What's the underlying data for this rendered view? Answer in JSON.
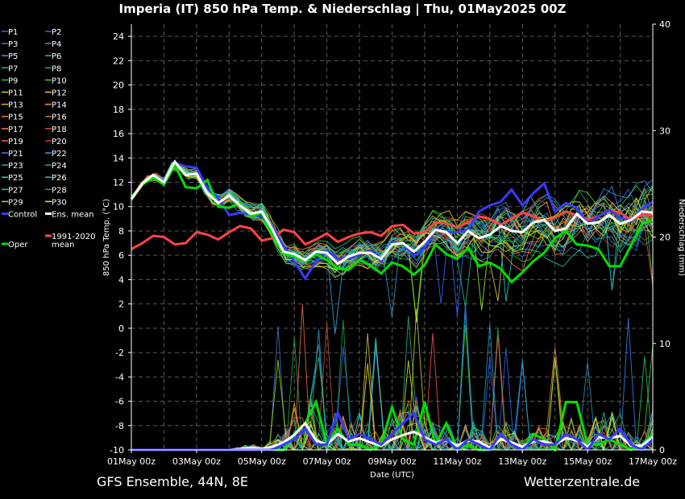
{
  "header": {
    "title": "Imperia  (IT)  850 hPa Temp. & Niederschlag | Thu, 01May2025 00Z"
  },
  "footer": {
    "model_info": "GFS Ensemble, 44N, 8E",
    "site": "Wetterzentrale.de"
  },
  "colors": {
    "background": "#000000",
    "grid": "#5a5a5a",
    "axis": "#ffffff",
    "control": "#3a3aff",
    "ens_mean": "#ffffff",
    "oper": "#00e000",
    "climate": "#ff4444"
  },
  "chart_data": {
    "type": "line",
    "x_start": "01May2025 00z",
    "x_step_hours": 6,
    "ylabel_left": "850 hPa Temp. (°C)",
    "ylabel_right": "Niederschlag (mm)",
    "xlabel": "Date (UTC)",
    "ylim_left": [
      -10,
      25
    ],
    "ylim_right": [
      0,
      40
    ],
    "left_ticks": [
      "24",
      "22",
      "20",
      "18",
      "16",
      "14",
      "12",
      "10",
      "8",
      "6",
      "4",
      "2",
      "0",
      "-2",
      "-4",
      "-6",
      "-8",
      "-10"
    ],
    "right_ticks": [
      "40",
      "30",
      "20",
      "10",
      "0"
    ],
    "x_ticks": [
      "01May 00z",
      "03May 00z",
      "05May 00z",
      "07May 00z",
      "09May 00z",
      "11May 00z",
      "13May 00z",
      "15May 00z",
      "17May 00z"
    ],
    "grid": true,
    "legend_position": "left",
    "legend": [
      {
        "label": "P1",
        "color": "#3366ff"
      },
      {
        "label": "P2",
        "color": "#3366ff"
      },
      {
        "label": "P3",
        "color": "#4477dd"
      },
      {
        "label": "P4",
        "color": "#3399cc"
      },
      {
        "label": "P5",
        "color": "#22aacc"
      },
      {
        "label": "P6",
        "color": "#22cc66"
      },
      {
        "label": "P7",
        "color": "#22bb88"
      },
      {
        "label": "P8",
        "color": "#22aa55"
      },
      {
        "label": "P9",
        "color": "#33cc33"
      },
      {
        "label": "P10",
        "color": "#44dd22"
      },
      {
        "label": "P11",
        "color": "#ccdd22"
      },
      {
        "label": "P12",
        "color": "#ddcc44"
      },
      {
        "label": "P13",
        "color": "#ddbb22"
      },
      {
        "label": "P14",
        "color": "#ee9922"
      },
      {
        "label": "P15",
        "color": "#ee8833"
      },
      {
        "label": "P16",
        "color": "#cc7733"
      },
      {
        "label": "P17",
        "color": "#ee7744"
      },
      {
        "label": "P18",
        "color": "#cc5533"
      },
      {
        "label": "P19",
        "color": "#ff5555"
      },
      {
        "label": "P20",
        "color": "#cc3333"
      },
      {
        "label": "P21",
        "color": "#3388ff"
      },
      {
        "label": "P22",
        "color": "#22aaee"
      },
      {
        "label": "P23",
        "color": "#22aacc"
      },
      {
        "label": "P24",
        "color": "#2299aa"
      },
      {
        "label": "P25",
        "color": "#22ddaa"
      },
      {
        "label": "P26",
        "color": "#22ccbb"
      },
      {
        "label": "P27",
        "color": "#22cc77"
      },
      {
        "label": "P28",
        "color": "#22aa33"
      },
      {
        "label": "P29",
        "color": "#99ee22"
      },
      {
        "label": "P30",
        "color": "#eeee22"
      },
      {
        "label": "Control",
        "color": "#3a3aff"
      },
      {
        "label": "Ens. mean",
        "color": "#ffffff"
      },
      {
        "label": "Oper",
        "color": "#00e000"
      },
      {
        "label": "1991-2020\nmean",
        "color": "#ff4444"
      }
    ],
    "series_temp": [
      {
        "name": "Control",
        "color": "#3a3aff",
        "width": 3,
        "values": [
          10.7,
          11.8,
          12.6,
          12.1,
          13.6,
          13.3,
          13.2,
          11.5,
          10.7,
          9.3,
          9.5,
          9.3,
          9.2,
          8.3,
          6.8,
          5.5,
          4.1,
          5.5,
          6.4,
          5.7,
          5.7,
          6.1,
          6.4,
          5.5,
          7.1,
          7.0,
          5.9,
          6.6,
          8.2,
          7.9,
          7.9,
          8.1,
          9.6,
          10.1,
          10.4,
          11.4,
          10.1,
          11.1,
          11.9,
          9.6,
          10.3,
          9.9,
          8.6,
          9.2,
          9.7,
          9.1,
          8.8,
          9.8,
          10.4
        ]
      },
      {
        "name": "Ens. mean",
        "color": "#ffffff",
        "width": 3,
        "values": [
          10.6,
          11.9,
          12.6,
          12.0,
          13.7,
          12.6,
          12.7,
          11.1,
          10.3,
          10.9,
          10.1,
          9.4,
          9.6,
          8.1,
          6.3,
          6.1,
          5.6,
          6.3,
          6.2,
          5.3,
          5.9,
          6.2,
          6.2,
          5.7,
          6.9,
          7.0,
          6.3,
          7.1,
          8.1,
          7.9,
          7.0,
          8.0,
          7.4,
          7.7,
          8.4,
          8.0,
          7.9,
          8.7,
          8.9,
          8.0,
          8.2,
          9.4,
          8.6,
          8.7,
          9.3,
          8.6,
          8.9,
          9.6,
          9.5
        ]
      },
      {
        "name": "Oper",
        "color": "#00e000",
        "width": 3,
        "values": [
          10.8,
          11.8,
          12.4,
          11.8,
          13.4,
          11.6,
          11.5,
          12.2,
          10.0,
          9.9,
          10.3,
          9.2,
          9.5,
          7.7,
          6.1,
          5.9,
          5.5,
          6.1,
          5.6,
          4.9,
          4.8,
          5.6,
          5.2,
          4.5,
          5.4,
          5.1,
          4.4,
          5.2,
          6.9,
          6.1,
          5.7,
          6.6,
          5.1,
          5.4,
          4.9,
          3.8,
          4.6,
          5.5,
          6.2,
          7.4,
          8.0,
          6.9,
          6.8,
          6.5,
          5.1,
          5.1,
          6.8,
          8.6,
          8.9
        ]
      },
      {
        "name": "1991-2020 mean",
        "color": "#ff4444",
        "width": 3,
        "values": [
          6.5,
          7.0,
          7.6,
          7.5,
          6.9,
          7.0,
          7.9,
          7.7,
          7.3,
          7.9,
          8.4,
          8.2,
          7.2,
          7.4,
          8.1,
          7.9,
          6.9,
          7.3,
          7.8,
          7.1,
          7.5,
          7.8,
          7.9,
          7.6,
          8.4,
          8.5,
          7.8,
          7.9,
          8.7,
          8.6,
          8.3,
          8.7,
          9.2,
          9.0,
          8.5,
          9.0,
          9.5,
          9.2,
          8.8,
          9.1,
          9.6,
          9.3,
          8.9,
          9.2,
          9.7,
          9.5,
          8.9,
          9.3,
          9.3
        ]
      }
    ],
    "series_precip": [
      {
        "name": "Oper",
        "color": "#00e000",
        "width": 3,
        "values": [
          0,
          0,
          0,
          0,
          0,
          0,
          0,
          0,
          0,
          0,
          0,
          0,
          0,
          0,
          0,
          1.5,
          2.5,
          4.5,
          0.5,
          2.0,
          0.5,
          0.5,
          0,
          0.5,
          4,
          1.0,
          0.5,
          4.5,
          0.5,
          2.5,
          0,
          0.5,
          0,
          0,
          1.5,
          0.5,
          0,
          1.5,
          1.0,
          0,
          4.5,
          4.5,
          0.5,
          0.5,
          1.0,
          0.5,
          0,
          0.5,
          1.5
        ]
      },
      {
        "name": "Ens. mean",
        "color": "#ffffff",
        "width": 3,
        "values": [
          0,
          0,
          0,
          0,
          0,
          0,
          0,
          0,
          0,
          0,
          0.1,
          0.2,
          0.1,
          0.3,
          0.7,
          1.4,
          2.5,
          0.9,
          0.5,
          1.5,
          0.8,
          1.1,
          0.7,
          0.4,
          1.0,
          1.4,
          1.7,
          1.2,
          0.7,
          0.9,
          0.4,
          0.9,
          0.8,
          0.2,
          1.0,
          0.7,
          0.3,
          0.8,
          0.8,
          0.5,
          1.1,
          0.9,
          0.3,
          1.2,
          1.1,
          1.3,
          0.4,
          0.4,
          1.2
        ]
      },
      {
        "name": "Control",
        "color": "#3a3aff",
        "width": 3,
        "values": [
          0,
          0,
          0,
          0,
          0,
          0,
          0,
          0,
          0,
          0,
          0,
          0,
          0,
          0,
          0.5,
          1.0,
          2.0,
          0.5,
          0.5,
          3.5,
          1.0,
          1.5,
          1.0,
          0.5,
          1.5,
          2.5,
          3.5,
          1.0,
          0.5,
          1.0,
          0,
          1.0,
          0.5,
          0,
          1.5,
          0.5,
          0,
          1.0,
          0.5,
          0.5,
          1.5,
          1.0,
          0,
          1.5,
          1.0,
          2.0,
          0.5,
          0,
          1.0
        ]
      }
    ]
  }
}
